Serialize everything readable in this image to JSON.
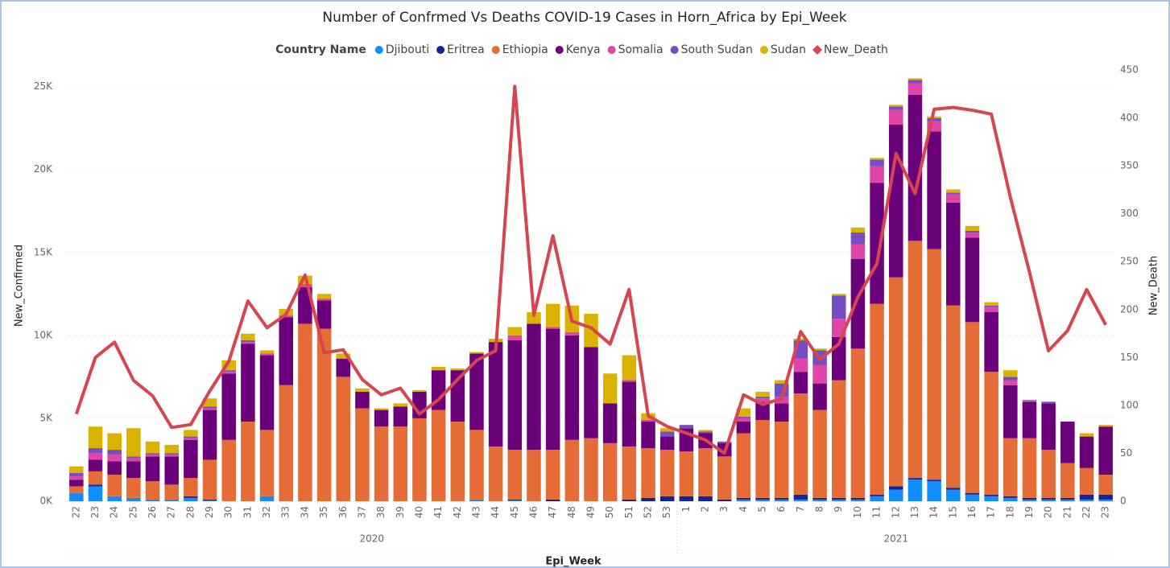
{
  "chart_data": {
    "type": "bar",
    "stacked": true,
    "title": "Number of Confrmed Vs Deaths COVID-19 Cases in Horn_Africa by Epi_Week",
    "legend_title": "Country Name",
    "legend_position": "top",
    "xlabel": "Epi_Week",
    "ylabel": "New_Confirmed",
    "y2label": "New_Death",
    "categories": [
      "22",
      "23",
      "24",
      "25",
      "26",
      "27",
      "28",
      "29",
      "30",
      "31",
      "32",
      "33",
      "34",
      "35",
      "36",
      "37",
      "38",
      "39",
      "40",
      "41",
      "42",
      "43",
      "44",
      "45",
      "46",
      "47",
      "48",
      "49",
      "50",
      "51",
      "52",
      "53",
      "1",
      "2",
      "3",
      "4",
      "5",
      "6",
      "7",
      "8",
      "9",
      "10",
      "11",
      "12",
      "13",
      "14",
      "15",
      "16",
      "17",
      "18",
      "19",
      "20",
      "21",
      "22",
      "23"
    ],
    "x_groups": [
      {
        "label": "2020",
        "span": 32
      },
      {
        "label": "2021",
        "span": 23
      }
    ],
    "ylim": [
      0,
      26000
    ],
    "yticks": [
      {
        "value": 0,
        "label": "0K"
      },
      {
        "value": 5000,
        "label": "5K"
      },
      {
        "value": 10000,
        "label": "10K"
      },
      {
        "value": 15000,
        "label": "15K"
      },
      {
        "value": 20000,
        "label": "20K"
      },
      {
        "value": 25000,
        "label": "25K"
      }
    ],
    "y2lim": [
      0,
      450
    ],
    "y2ticks": [
      0,
      50,
      100,
      150,
      200,
      250,
      300,
      350,
      400,
      450
    ],
    "grid": true,
    "series": [
      {
        "name": "Djibouti",
        "color": "#118dff",
        "values": [
          500,
          900,
          300,
          200,
          100,
          100,
          200,
          50,
          0,
          0,
          300,
          0,
          0,
          0,
          0,
          0,
          0,
          0,
          0,
          0,
          0,
          100,
          0,
          50,
          0,
          0,
          0,
          0,
          0,
          0,
          0,
          0,
          0,
          0,
          0,
          100,
          100,
          100,
          100,
          100,
          100,
          100,
          300,
          700,
          1300,
          1200,
          700,
          400,
          300,
          200,
          100,
          100,
          100,
          100,
          100
        ]
      },
      {
        "name": "Eritrea",
        "color": "#12239e",
        "values": [
          0,
          100,
          0,
          0,
          0,
          0,
          100,
          50,
          0,
          0,
          0,
          0,
          0,
          0,
          0,
          0,
          0,
          0,
          0,
          0,
          0,
          0,
          0,
          50,
          0,
          100,
          0,
          0,
          0,
          100,
          200,
          300,
          300,
          300,
          100,
          100,
          100,
          100,
          300,
          100,
          100,
          100,
          100,
          200,
          100,
          100,
          100,
          100,
          100,
          100,
          100,
          100,
          100,
          300,
          300
        ]
      },
      {
        "name": "Ethiopia",
        "color": "#e66c37",
        "values": [
          400,
          800,
          1300,
          1200,
          1100,
          900,
          1100,
          2400,
          3700,
          4800,
          4000,
          7000,
          10700,
          10400,
          7500,
          5600,
          4500,
          4500,
          5000,
          5500,
          4800,
          4200,
          3300,
          3000,
          3100,
          3000,
          3700,
          3800,
          3500,
          3200,
          3000,
          2800,
          2700,
          2900,
          2600,
          3900,
          4700,
          4600,
          6100,
          5300,
          7100,
          9000,
          11500,
          12600,
          14300,
          13900,
          11000,
          10300,
          7400,
          3500,
          3600,
          2900,
          2100,
          1600,
          1200
        ]
      },
      {
        "name": "Kenya",
        "color": "#6b007b",
        "values": [
          400,
          700,
          800,
          1000,
          1500,
          1700,
          2300,
          3000,
          4000,
          4700,
          4500,
          4100,
          2200,
          1700,
          1100,
          1000,
          1000,
          1200,
          1600,
          2400,
          3100,
          4600,
          6300,
          6600,
          7600,
          7300,
          6300,
          5500,
          2400,
          3900,
          1600,
          800,
          1400,
          900,
          800,
          700,
          1100,
          1100,
          1300,
          1600,
          2600,
          5400,
          7300,
          9200,
          8800,
          7100,
          6200,
          5100,
          3600,
          3200,
          2200,
          2800,
          2500,
          1900,
          2900
        ]
      },
      {
        "name": "Somalia",
        "color": "#e044a7",
        "values": [
          200,
          400,
          400,
          200,
          100,
          100,
          100,
          100,
          100,
          100,
          100,
          100,
          200,
          100,
          0,
          0,
          0,
          0,
          0,
          0,
          0,
          0,
          0,
          300,
          0,
          100,
          200,
          0,
          0,
          100,
          100,
          0,
          0,
          0,
          0,
          200,
          200,
          400,
          800,
          1100,
          1100,
          900,
          1000,
          900,
          700,
          600,
          500,
          300,
          300,
          300,
          50,
          0,
          0,
          0,
          0
        ]
      },
      {
        "name": "South Sudan",
        "color": "#744ec2",
        "values": [
          200,
          300,
          300,
          100,
          100,
          100,
          100,
          100,
          100,
          100,
          0,
          0,
          0,
          0,
          0,
          0,
          0,
          0,
          0,
          0,
          0,
          0,
          0,
          0,
          0,
          0,
          0,
          0,
          0,
          0,
          0,
          300,
          200,
          100,
          100,
          100,
          100,
          800,
          1100,
          900,
          1400,
          700,
          400,
          200,
          200,
          200,
          100,
          100,
          100,
          200,
          50,
          100,
          0,
          0,
          0
        ]
      },
      {
        "name": "Sudan",
        "color": "#d9b300",
        "values": [
          400,
          1300,
          1000,
          1700,
          700,
          500,
          400,
          500,
          600,
          400,
          200,
          400,
          500,
          300,
          300,
          200,
          100,
          200,
          100,
          200,
          100,
          100,
          200,
          500,
          700,
          1400,
          1600,
          2000,
          1800,
          1500,
          400,
          200,
          0,
          100,
          0,
          500,
          300,
          200,
          100,
          100,
          100,
          300,
          100,
          100,
          100,
          100,
          200,
          300,
          200,
          400,
          0,
          0,
          0,
          200,
          100
        ]
      },
      {
        "name": "New_Death",
        "color": "#d64550",
        "axis": "y2",
        "type": "line",
        "values": [
          91,
          150,
          166,
          126,
          110,
          77,
          80,
          115,
          146,
          209,
          181,
          195,
          236,
          155,
          158,
          127,
          111,
          118,
          91,
          106,
          127,
          147,
          157,
          433,
          194,
          277,
          188,
          181,
          164,
          221,
          89,
          78,
          71,
          64,
          50,
          111,
          101,
          107,
          177,
          148,
          164,
          213,
          248,
          363,
          321,
          409,
          411,
          408,
          404,
          317,
          239,
          157,
          178,
          221,
          184
        ]
      }
    ]
  }
}
